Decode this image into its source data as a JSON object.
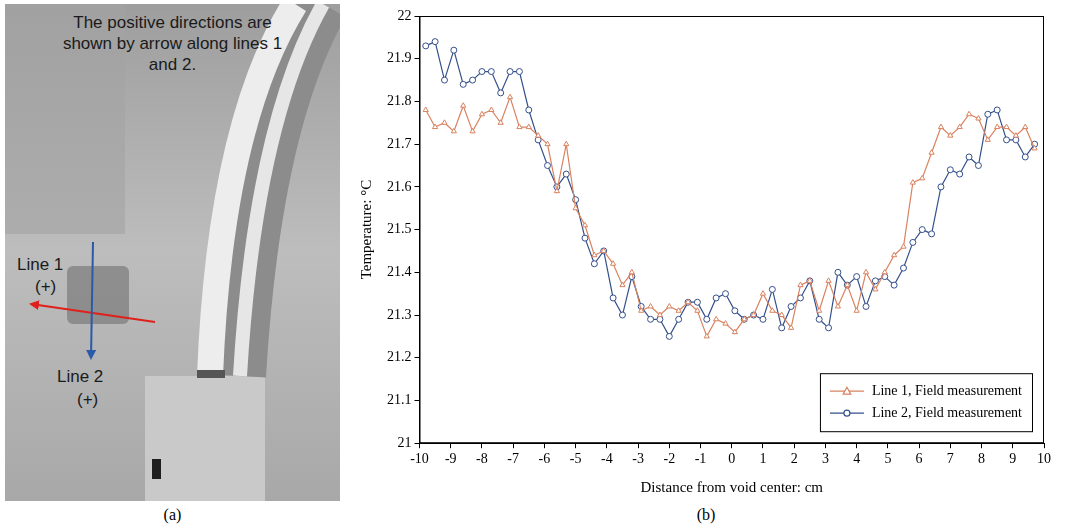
{
  "image_panel": {
    "panel_label": "(a)",
    "note": "The positive directions are shown by arrow along lines 1 and 2.",
    "lines": [
      {
        "name": "Line 1",
        "sign": "(+)"
      },
      {
        "name": "Line 2",
        "sign": "(+)"
      }
    ]
  },
  "chart_data": {
    "type": "line",
    "panel_label": "(b)",
    "x_label": "Distance from void center: cm",
    "y_label": "Temperature: °C",
    "xlim": [
      -10,
      10
    ],
    "xticks": [
      -10,
      -9,
      -8,
      -7,
      -6,
      -5,
      -4,
      -3,
      -2,
      -1,
      0,
      1,
      2,
      3,
      4,
      5,
      6,
      7,
      8,
      9,
      10
    ],
    "ylim": [
      21,
      22
    ],
    "yticks": [
      21,
      21.1,
      21.2,
      21.3,
      21.4,
      21.5,
      21.6,
      21.7,
      21.8,
      21.9,
      22
    ],
    "grid": false,
    "legend": "lower right",
    "x": [
      -9.8,
      -9.5,
      -9.2,
      -8.9,
      -8.6,
      -8.3,
      -8.0,
      -7.7,
      -7.4,
      -7.1,
      -6.8,
      -6.5,
      -6.2,
      -5.9,
      -5.6,
      -5.3,
      -5.0,
      -4.7,
      -4.4,
      -4.1,
      -3.8,
      -3.5,
      -3.2,
      -2.9,
      -2.6,
      -2.3,
      -2.0,
      -1.7,
      -1.4,
      -1.1,
      -0.8,
      -0.5,
      -0.2,
      0.1,
      0.4,
      0.7,
      1.0,
      1.3,
      1.6,
      1.9,
      2.2,
      2.5,
      2.8,
      3.1,
      3.4,
      3.7,
      4.0,
      4.3,
      4.6,
      4.9,
      5.2,
      5.5,
      5.8,
      6.1,
      6.4,
      6.7,
      7.0,
      7.3,
      7.6,
      7.9,
      8.2,
      8.5,
      8.8,
      9.1,
      9.4,
      9.7
    ],
    "series": [
      {
        "name": "Line 1, Field measurement",
        "color": "#d9825f",
        "marker": "triangle",
        "line_style": "solid",
        "values": [
          21.78,
          21.74,
          21.75,
          21.73,
          21.79,
          21.73,
          21.77,
          21.78,
          21.75,
          21.81,
          21.74,
          21.74,
          21.72,
          21.7,
          21.59,
          21.7,
          21.55,
          21.51,
          21.44,
          21.45,
          21.42,
          21.37,
          21.4,
          21.31,
          21.32,
          21.3,
          21.32,
          21.31,
          21.33,
          21.31,
          21.25,
          21.29,
          21.28,
          21.26,
          21.29,
          21.3,
          21.35,
          21.31,
          21.3,
          21.27,
          21.37,
          21.38,
          21.31,
          21.38,
          21.32,
          21.37,
          21.31,
          21.4,
          21.36,
          21.4,
          21.44,
          21.46,
          21.61,
          21.62,
          21.68,
          21.74,
          21.72,
          21.74,
          21.77,
          21.76,
          21.71,
          21.74,
          21.74,
          21.72,
          21.74,
          21.69
        ]
      },
      {
        "name": "Line 2, Field measurement",
        "color": "#34508a",
        "marker": "circle",
        "line_style": "solid",
        "values": [
          21.93,
          21.94,
          21.85,
          21.92,
          21.84,
          21.85,
          21.87,
          21.87,
          21.82,
          21.87,
          21.87,
          21.78,
          21.71,
          21.65,
          21.6,
          21.63,
          21.57,
          21.48,
          21.42,
          21.45,
          21.34,
          21.3,
          21.39,
          21.32,
          21.29,
          21.29,
          21.25,
          21.29,
          21.33,
          21.33,
          21.29,
          21.34,
          21.35,
          21.31,
          21.29,
          21.3,
          21.29,
          21.36,
          21.27,
          21.32,
          21.34,
          21.38,
          21.29,
          21.27,
          21.4,
          21.37,
          21.39,
          21.32,
          21.38,
          21.39,
          21.37,
          21.41,
          21.47,
          21.5,
          21.49,
          21.6,
          21.64,
          21.63,
          21.67,
          21.65,
          21.77,
          21.78,
          21.71,
          21.71,
          21.67,
          21.7
        ]
      }
    ]
  }
}
